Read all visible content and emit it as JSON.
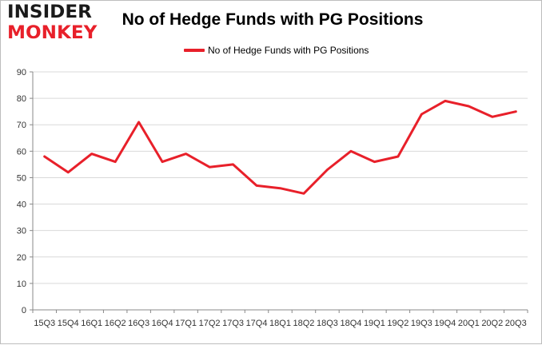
{
  "logo": {
    "line1": "INSIDER",
    "line2": "MONKEY"
  },
  "colors": {
    "series": "#e8202a",
    "grid": "#d9d9d9",
    "axis": "#888888"
  },
  "chart_data": {
    "type": "line",
    "title": "No of Hedge Funds with PG Positions",
    "xlabel": "",
    "ylabel": "",
    "ylim": [
      0,
      90
    ],
    "yticks": [
      0,
      10,
      20,
      30,
      40,
      50,
      60,
      70,
      80,
      90
    ],
    "grid": true,
    "legend_position": "top-center",
    "categories": [
      "15Q3",
      "15Q4",
      "16Q1",
      "16Q2",
      "16Q3",
      "16Q4",
      "17Q1",
      "17Q2",
      "17Q3",
      "17Q4",
      "18Q1",
      "18Q2",
      "18Q3",
      "18Q4",
      "19Q1",
      "19Q2",
      "19Q3",
      "19Q4",
      "20Q1",
      "20Q2",
      "20Q3"
    ],
    "series": [
      {
        "name": "No of Hedge Funds with PG Positions",
        "values": [
          58,
          52,
          59,
          56,
          71,
          56,
          59,
          54,
          55,
          47,
          46,
          44,
          53,
          60,
          56,
          58,
          74,
          79,
          77,
          73,
          75
        ]
      }
    ]
  }
}
